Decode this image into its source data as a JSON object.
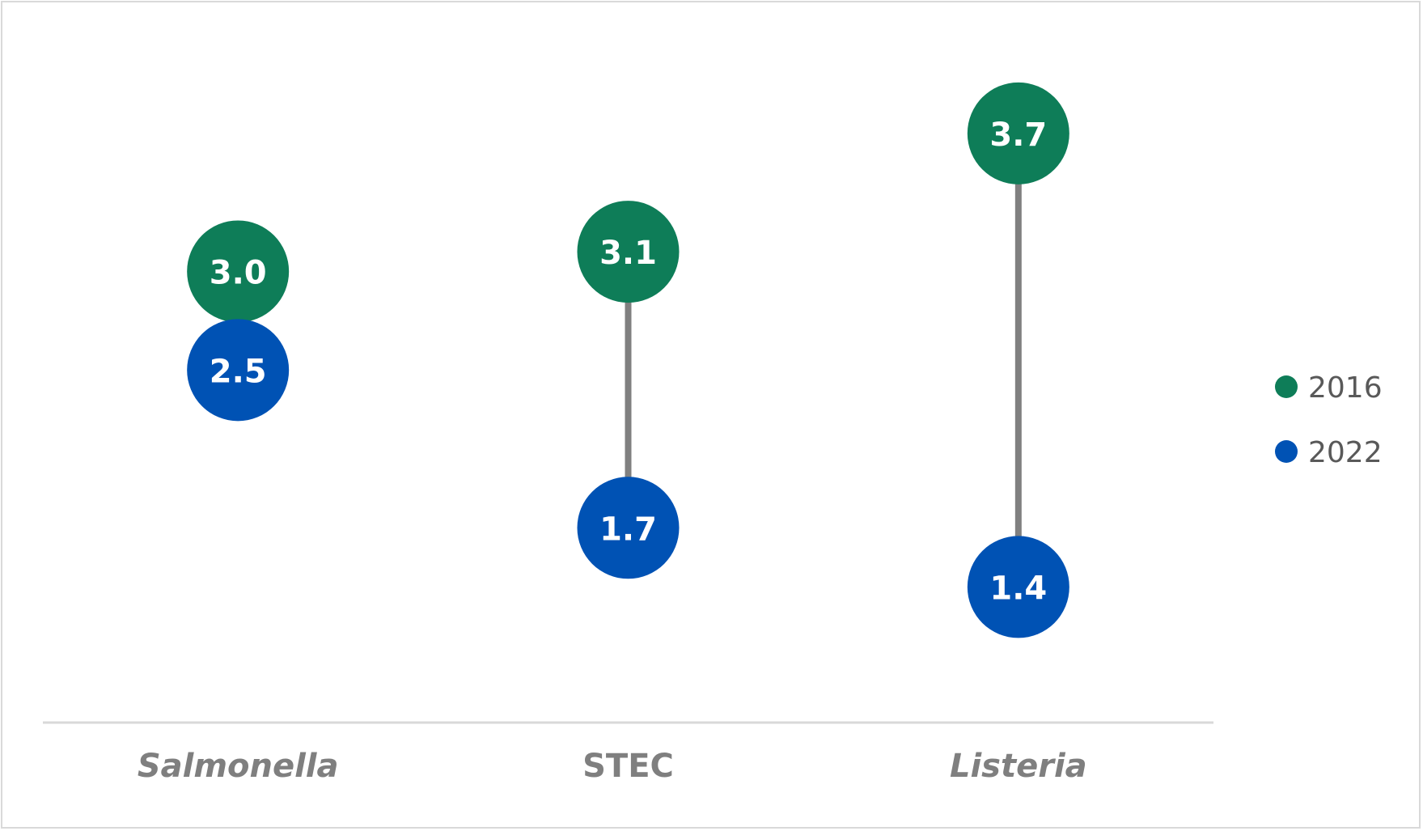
{
  "chart_data": {
    "type": "dumbbell",
    "title": "",
    "xlabel": "",
    "ylabel": "",
    "categories": [
      "Salmonella",
      "STEC",
      "Listeria"
    ],
    "category_italic": [
      true,
      false,
      true
    ],
    "series": [
      {
        "name": "2016",
        "color": "#0e7d58",
        "values": [
          3.0,
          3.1,
          3.7
        ],
        "labels": [
          "3.0",
          "3.1",
          "3.7"
        ]
      },
      {
        "name": "2022",
        "color": "#0052b4",
        "values": [
          2.5,
          1.7,
          1.4
        ],
        "labels": [
          "2.5",
          "1.7",
          "1.4"
        ]
      }
    ],
    "connector_color": "#808080",
    "ylim": [
      0.7,
      4.2
    ],
    "grid": false,
    "legend_position": "right"
  }
}
